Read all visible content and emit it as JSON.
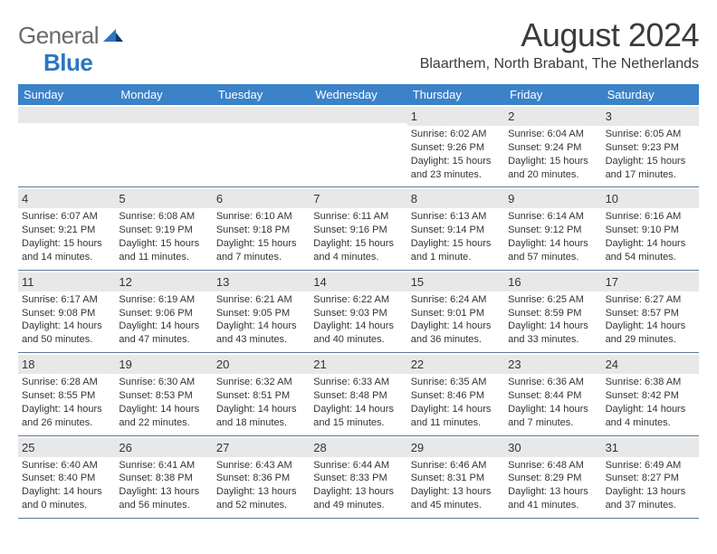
{
  "logo": {
    "text1": "General",
    "text2": "Blue"
  },
  "header": {
    "title": "August 2024",
    "location": "Blaarthem, North Brabant, The Netherlands"
  },
  "colors": {
    "header_bar": "#3b82c9",
    "header_text": "#ffffff",
    "daynum_bg": "#e8e8e8",
    "rule": "#5a7a9a",
    "logo_gray": "#6b6b6b",
    "logo_blue": "#2c75bf"
  },
  "day_names": [
    "Sunday",
    "Monday",
    "Tuesday",
    "Wednesday",
    "Thursday",
    "Friday",
    "Saturday"
  ],
  "weeks": [
    [
      {
        "empty": true
      },
      {
        "empty": true
      },
      {
        "empty": true
      },
      {
        "empty": true
      },
      {
        "day": "1",
        "sunrise": "Sunrise: 6:02 AM",
        "sunset": "Sunset: 9:26 PM",
        "daylight1": "Daylight: 15 hours",
        "daylight2": "and 23 minutes."
      },
      {
        "day": "2",
        "sunrise": "Sunrise: 6:04 AM",
        "sunset": "Sunset: 9:24 PM",
        "daylight1": "Daylight: 15 hours",
        "daylight2": "and 20 minutes."
      },
      {
        "day": "3",
        "sunrise": "Sunrise: 6:05 AM",
        "sunset": "Sunset: 9:23 PM",
        "daylight1": "Daylight: 15 hours",
        "daylight2": "and 17 minutes."
      }
    ],
    [
      {
        "day": "4",
        "sunrise": "Sunrise: 6:07 AM",
        "sunset": "Sunset: 9:21 PM",
        "daylight1": "Daylight: 15 hours",
        "daylight2": "and 14 minutes."
      },
      {
        "day": "5",
        "sunrise": "Sunrise: 6:08 AM",
        "sunset": "Sunset: 9:19 PM",
        "daylight1": "Daylight: 15 hours",
        "daylight2": "and 11 minutes."
      },
      {
        "day": "6",
        "sunrise": "Sunrise: 6:10 AM",
        "sunset": "Sunset: 9:18 PM",
        "daylight1": "Daylight: 15 hours",
        "daylight2": "and 7 minutes."
      },
      {
        "day": "7",
        "sunrise": "Sunrise: 6:11 AM",
        "sunset": "Sunset: 9:16 PM",
        "daylight1": "Daylight: 15 hours",
        "daylight2": "and 4 minutes."
      },
      {
        "day": "8",
        "sunrise": "Sunrise: 6:13 AM",
        "sunset": "Sunset: 9:14 PM",
        "daylight1": "Daylight: 15 hours",
        "daylight2": "and 1 minute."
      },
      {
        "day": "9",
        "sunrise": "Sunrise: 6:14 AM",
        "sunset": "Sunset: 9:12 PM",
        "daylight1": "Daylight: 14 hours",
        "daylight2": "and 57 minutes."
      },
      {
        "day": "10",
        "sunrise": "Sunrise: 6:16 AM",
        "sunset": "Sunset: 9:10 PM",
        "daylight1": "Daylight: 14 hours",
        "daylight2": "and 54 minutes."
      }
    ],
    [
      {
        "day": "11",
        "sunrise": "Sunrise: 6:17 AM",
        "sunset": "Sunset: 9:08 PM",
        "daylight1": "Daylight: 14 hours",
        "daylight2": "and 50 minutes."
      },
      {
        "day": "12",
        "sunrise": "Sunrise: 6:19 AM",
        "sunset": "Sunset: 9:06 PM",
        "daylight1": "Daylight: 14 hours",
        "daylight2": "and 47 minutes."
      },
      {
        "day": "13",
        "sunrise": "Sunrise: 6:21 AM",
        "sunset": "Sunset: 9:05 PM",
        "daylight1": "Daylight: 14 hours",
        "daylight2": "and 43 minutes."
      },
      {
        "day": "14",
        "sunrise": "Sunrise: 6:22 AM",
        "sunset": "Sunset: 9:03 PM",
        "daylight1": "Daylight: 14 hours",
        "daylight2": "and 40 minutes."
      },
      {
        "day": "15",
        "sunrise": "Sunrise: 6:24 AM",
        "sunset": "Sunset: 9:01 PM",
        "daylight1": "Daylight: 14 hours",
        "daylight2": "and 36 minutes."
      },
      {
        "day": "16",
        "sunrise": "Sunrise: 6:25 AM",
        "sunset": "Sunset: 8:59 PM",
        "daylight1": "Daylight: 14 hours",
        "daylight2": "and 33 minutes."
      },
      {
        "day": "17",
        "sunrise": "Sunrise: 6:27 AM",
        "sunset": "Sunset: 8:57 PM",
        "daylight1": "Daylight: 14 hours",
        "daylight2": "and 29 minutes."
      }
    ],
    [
      {
        "day": "18",
        "sunrise": "Sunrise: 6:28 AM",
        "sunset": "Sunset: 8:55 PM",
        "daylight1": "Daylight: 14 hours",
        "daylight2": "and 26 minutes."
      },
      {
        "day": "19",
        "sunrise": "Sunrise: 6:30 AM",
        "sunset": "Sunset: 8:53 PM",
        "daylight1": "Daylight: 14 hours",
        "daylight2": "and 22 minutes."
      },
      {
        "day": "20",
        "sunrise": "Sunrise: 6:32 AM",
        "sunset": "Sunset: 8:51 PM",
        "daylight1": "Daylight: 14 hours",
        "daylight2": "and 18 minutes."
      },
      {
        "day": "21",
        "sunrise": "Sunrise: 6:33 AM",
        "sunset": "Sunset: 8:48 PM",
        "daylight1": "Daylight: 14 hours",
        "daylight2": "and 15 minutes."
      },
      {
        "day": "22",
        "sunrise": "Sunrise: 6:35 AM",
        "sunset": "Sunset: 8:46 PM",
        "daylight1": "Daylight: 14 hours",
        "daylight2": "and 11 minutes."
      },
      {
        "day": "23",
        "sunrise": "Sunrise: 6:36 AM",
        "sunset": "Sunset: 8:44 PM",
        "daylight1": "Daylight: 14 hours",
        "daylight2": "and 7 minutes."
      },
      {
        "day": "24",
        "sunrise": "Sunrise: 6:38 AM",
        "sunset": "Sunset: 8:42 PM",
        "daylight1": "Daylight: 14 hours",
        "daylight2": "and 4 minutes."
      }
    ],
    [
      {
        "day": "25",
        "sunrise": "Sunrise: 6:40 AM",
        "sunset": "Sunset: 8:40 PM",
        "daylight1": "Daylight: 14 hours",
        "daylight2": "and 0 minutes."
      },
      {
        "day": "26",
        "sunrise": "Sunrise: 6:41 AM",
        "sunset": "Sunset: 8:38 PM",
        "daylight1": "Daylight: 13 hours",
        "daylight2": "and 56 minutes."
      },
      {
        "day": "27",
        "sunrise": "Sunrise: 6:43 AM",
        "sunset": "Sunset: 8:36 PM",
        "daylight1": "Daylight: 13 hours",
        "daylight2": "and 52 minutes."
      },
      {
        "day": "28",
        "sunrise": "Sunrise: 6:44 AM",
        "sunset": "Sunset: 8:33 PM",
        "daylight1": "Daylight: 13 hours",
        "daylight2": "and 49 minutes."
      },
      {
        "day": "29",
        "sunrise": "Sunrise: 6:46 AM",
        "sunset": "Sunset: 8:31 PM",
        "daylight1": "Daylight: 13 hours",
        "daylight2": "and 45 minutes."
      },
      {
        "day": "30",
        "sunrise": "Sunrise: 6:48 AM",
        "sunset": "Sunset: 8:29 PM",
        "daylight1": "Daylight: 13 hours",
        "daylight2": "and 41 minutes."
      },
      {
        "day": "31",
        "sunrise": "Sunrise: 6:49 AM",
        "sunset": "Sunset: 8:27 PM",
        "daylight1": "Daylight: 13 hours",
        "daylight2": "and 37 minutes."
      }
    ]
  ]
}
